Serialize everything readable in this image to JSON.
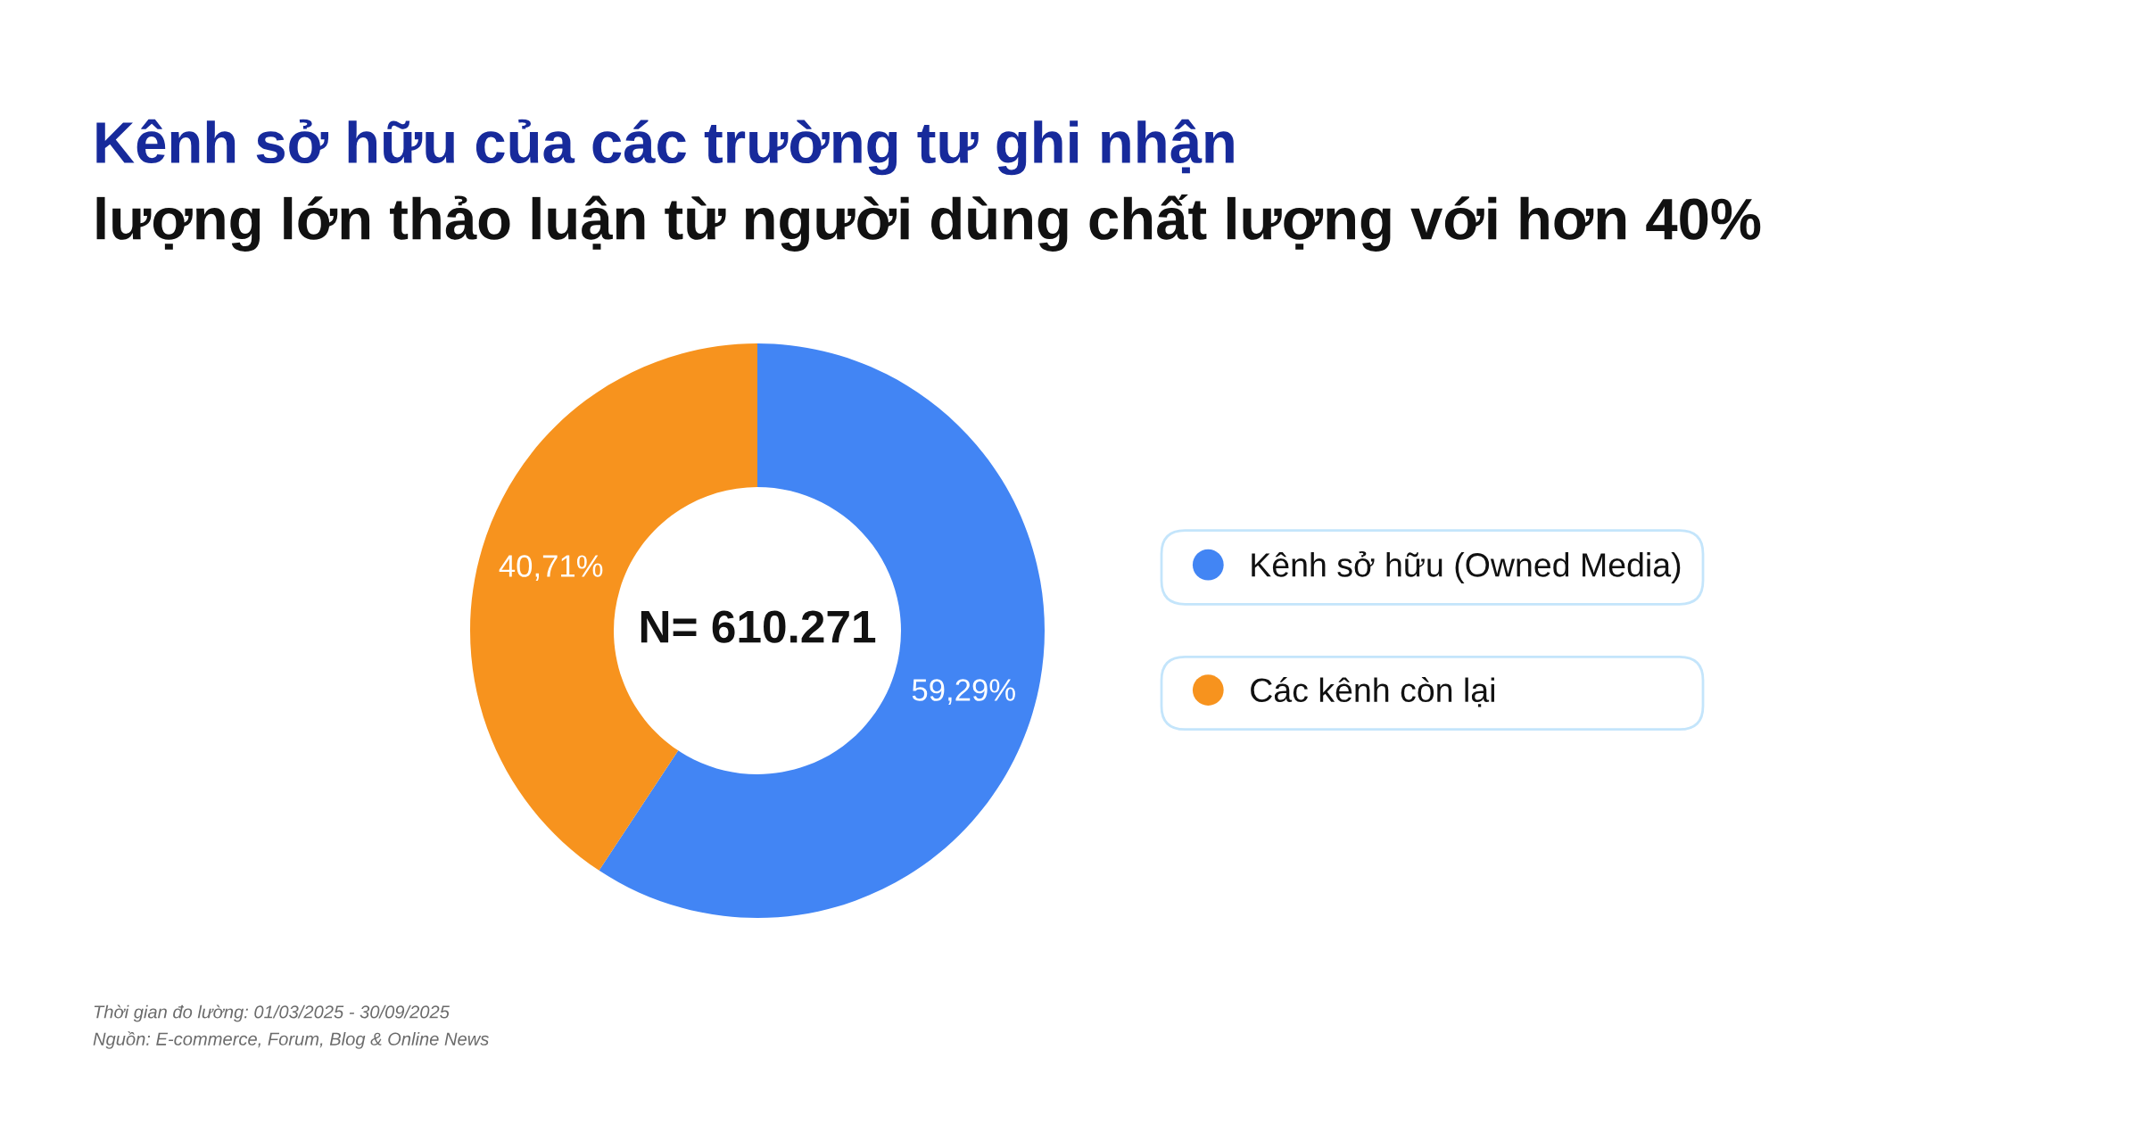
{
  "chart_data": {
    "type": "donut",
    "title": "Kênh sở hữu của các trường tư ghi nhận",
    "subtitle": "lượng lớn thảo luận từ người dùng chất lượng với hơn 40%",
    "categories": [
      "Kênh sở hữu (Owned Media)",
      "Các kênh còn lại"
    ],
    "values": [
      59.29,
      40.71
    ],
    "colors": [
      "#4285f4",
      "#f7931e"
    ],
    "value_labels": [
      "59,29%",
      "40,71%"
    ],
    "annotations": [
      "N= 610.271",
      "Thời gian đo lường: 01/03/2025 - 30/09/2025",
      "Nguồn: E-commerce, Forum, Blog & Online News"
    ],
    "legend": "right"
  }
}
